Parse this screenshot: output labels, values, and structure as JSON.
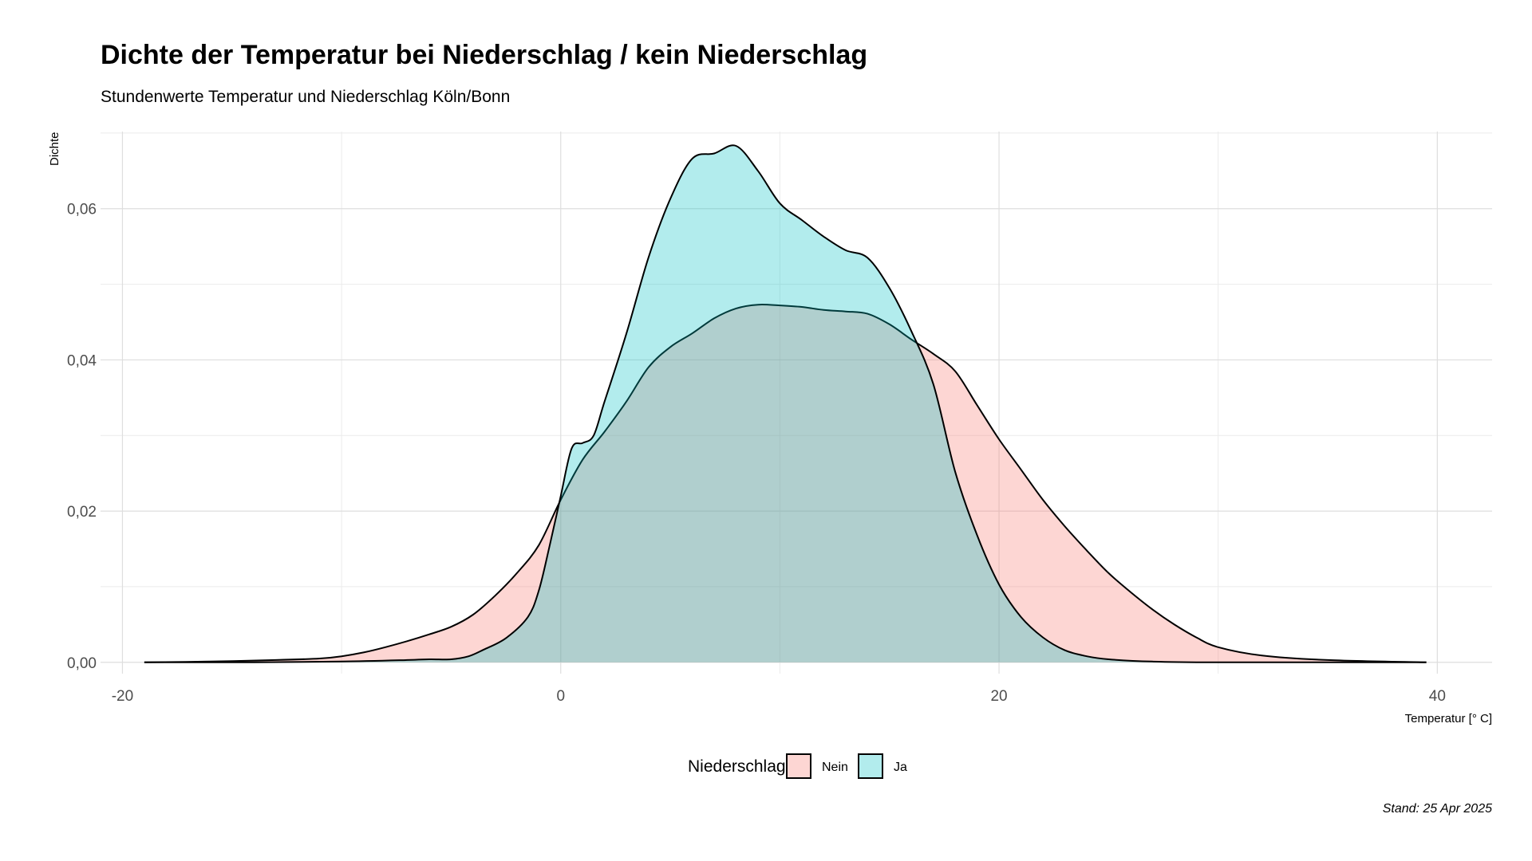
{
  "chart_data": {
    "type": "area",
    "title": "Dichte der Temperatur bei Niederschlag / kein Niederschlag",
    "subtitle": "Stundenwerte Temperatur und Niederschlag Köln/Bonn",
    "xlabel": "Temperatur [° C]",
    "ylabel": "Dichte",
    "caption": "Stand: 25 Apr 2025",
    "xlim": [
      -21,
      42.5
    ],
    "ylim": [
      -0.0015,
      0.0702
    ],
    "x_ticks": [
      -20,
      0,
      20,
      40
    ],
    "x_tick_labels": [
      "-20",
      "0",
      "20",
      "40"
    ],
    "y_ticks": [
      0,
      0.02,
      0.04,
      0.06
    ],
    "y_tick_labels": [
      "0,00",
      "0,02",
      "0,04",
      "0,06"
    ],
    "grid": true,
    "legend": {
      "title": "Niederschlag",
      "position": "bottom",
      "entries": [
        "Nein",
        "Ja"
      ]
    },
    "series": [
      {
        "name": "Nein",
        "color": "#F8766D",
        "points": [
          [
            -19,
            0
          ],
          [
            -16,
            0.0001
          ],
          [
            -13,
            0.0003
          ],
          [
            -11,
            0.0005
          ],
          [
            -10,
            0.0008
          ],
          [
            -9,
            0.0013
          ],
          [
            -8,
            0.002
          ],
          [
            -7,
            0.0028
          ],
          [
            -6,
            0.0037
          ],
          [
            -5,
            0.0047
          ],
          [
            -4,
            0.0063
          ],
          [
            -3,
            0.0088
          ],
          [
            -2,
            0.0118
          ],
          [
            -1,
            0.0155
          ],
          [
            0,
            0.0215
          ],
          [
            1,
            0.0268
          ],
          [
            2,
            0.0305
          ],
          [
            3,
            0.0345
          ],
          [
            4,
            0.039
          ],
          [
            5,
            0.0417
          ],
          [
            6,
            0.0435
          ],
          [
            7,
            0.0455
          ],
          [
            8,
            0.0468
          ],
          [
            9,
            0.0473
          ],
          [
            10,
            0.0472
          ],
          [
            11,
            0.047
          ],
          [
            12,
            0.0466
          ],
          [
            13,
            0.0464
          ],
          [
            14,
            0.0461
          ],
          [
            15,
            0.0447
          ],
          [
            16,
            0.0427
          ],
          [
            17,
            0.0408
          ],
          [
            18,
            0.0385
          ],
          [
            19,
            0.034
          ],
          [
            20,
            0.0295
          ],
          [
            21,
            0.0255
          ],
          [
            22,
            0.0215
          ],
          [
            23,
            0.018
          ],
          [
            24,
            0.0148
          ],
          [
            25,
            0.0118
          ],
          [
            26,
            0.0093
          ],
          [
            27,
            0.007
          ],
          [
            28,
            0.005
          ],
          [
            29,
            0.0033
          ],
          [
            30,
            0.002
          ],
          [
            32,
            0.0009
          ],
          [
            35,
            0.0003
          ],
          [
            39.5,
            0
          ]
        ]
      },
      {
        "name": "Ja",
        "color": "#00BFC4",
        "points": [
          [
            -19,
            0
          ],
          [
            -14,
            0
          ],
          [
            -10,
            0.0001
          ],
          [
            -7,
            0.0003
          ],
          [
            -6,
            0.0004
          ],
          [
            -5,
            0.0004
          ],
          [
            -4.2,
            0.0008
          ],
          [
            -3.5,
            0.0017
          ],
          [
            -2.5,
            0.0032
          ],
          [
            -1.5,
            0.006
          ],
          [
            -1,
            0.0095
          ],
          [
            -0.5,
            0.0155
          ],
          [
            0,
            0.022
          ],
          [
            0.5,
            0.0283
          ],
          [
            1,
            0.029
          ],
          [
            1.5,
            0.03
          ],
          [
            2,
            0.0345
          ],
          [
            3,
            0.0435
          ],
          [
            4,
            0.0535
          ],
          [
            5,
            0.0613
          ],
          [
            6,
            0.0666
          ],
          [
            7,
            0.0673
          ],
          [
            8,
            0.0683
          ],
          [
            9,
            0.065
          ],
          [
            10,
            0.0607
          ],
          [
            11,
            0.0585
          ],
          [
            12,
            0.0563
          ],
          [
            13,
            0.0545
          ],
          [
            14,
            0.0535
          ],
          [
            15,
            0.0495
          ],
          [
            16,
            0.0438
          ],
          [
            17,
            0.0368
          ],
          [
            18,
            0.0252
          ],
          [
            19,
            0.0168
          ],
          [
            20,
            0.0103
          ],
          [
            21,
            0.006
          ],
          [
            22,
            0.0033
          ],
          [
            23,
            0.0016
          ],
          [
            24,
            0.0008
          ],
          [
            25,
            0.0004
          ],
          [
            27,
            0.0001
          ],
          [
            30,
            0
          ],
          [
            39.5,
            0
          ]
        ]
      }
    ]
  }
}
